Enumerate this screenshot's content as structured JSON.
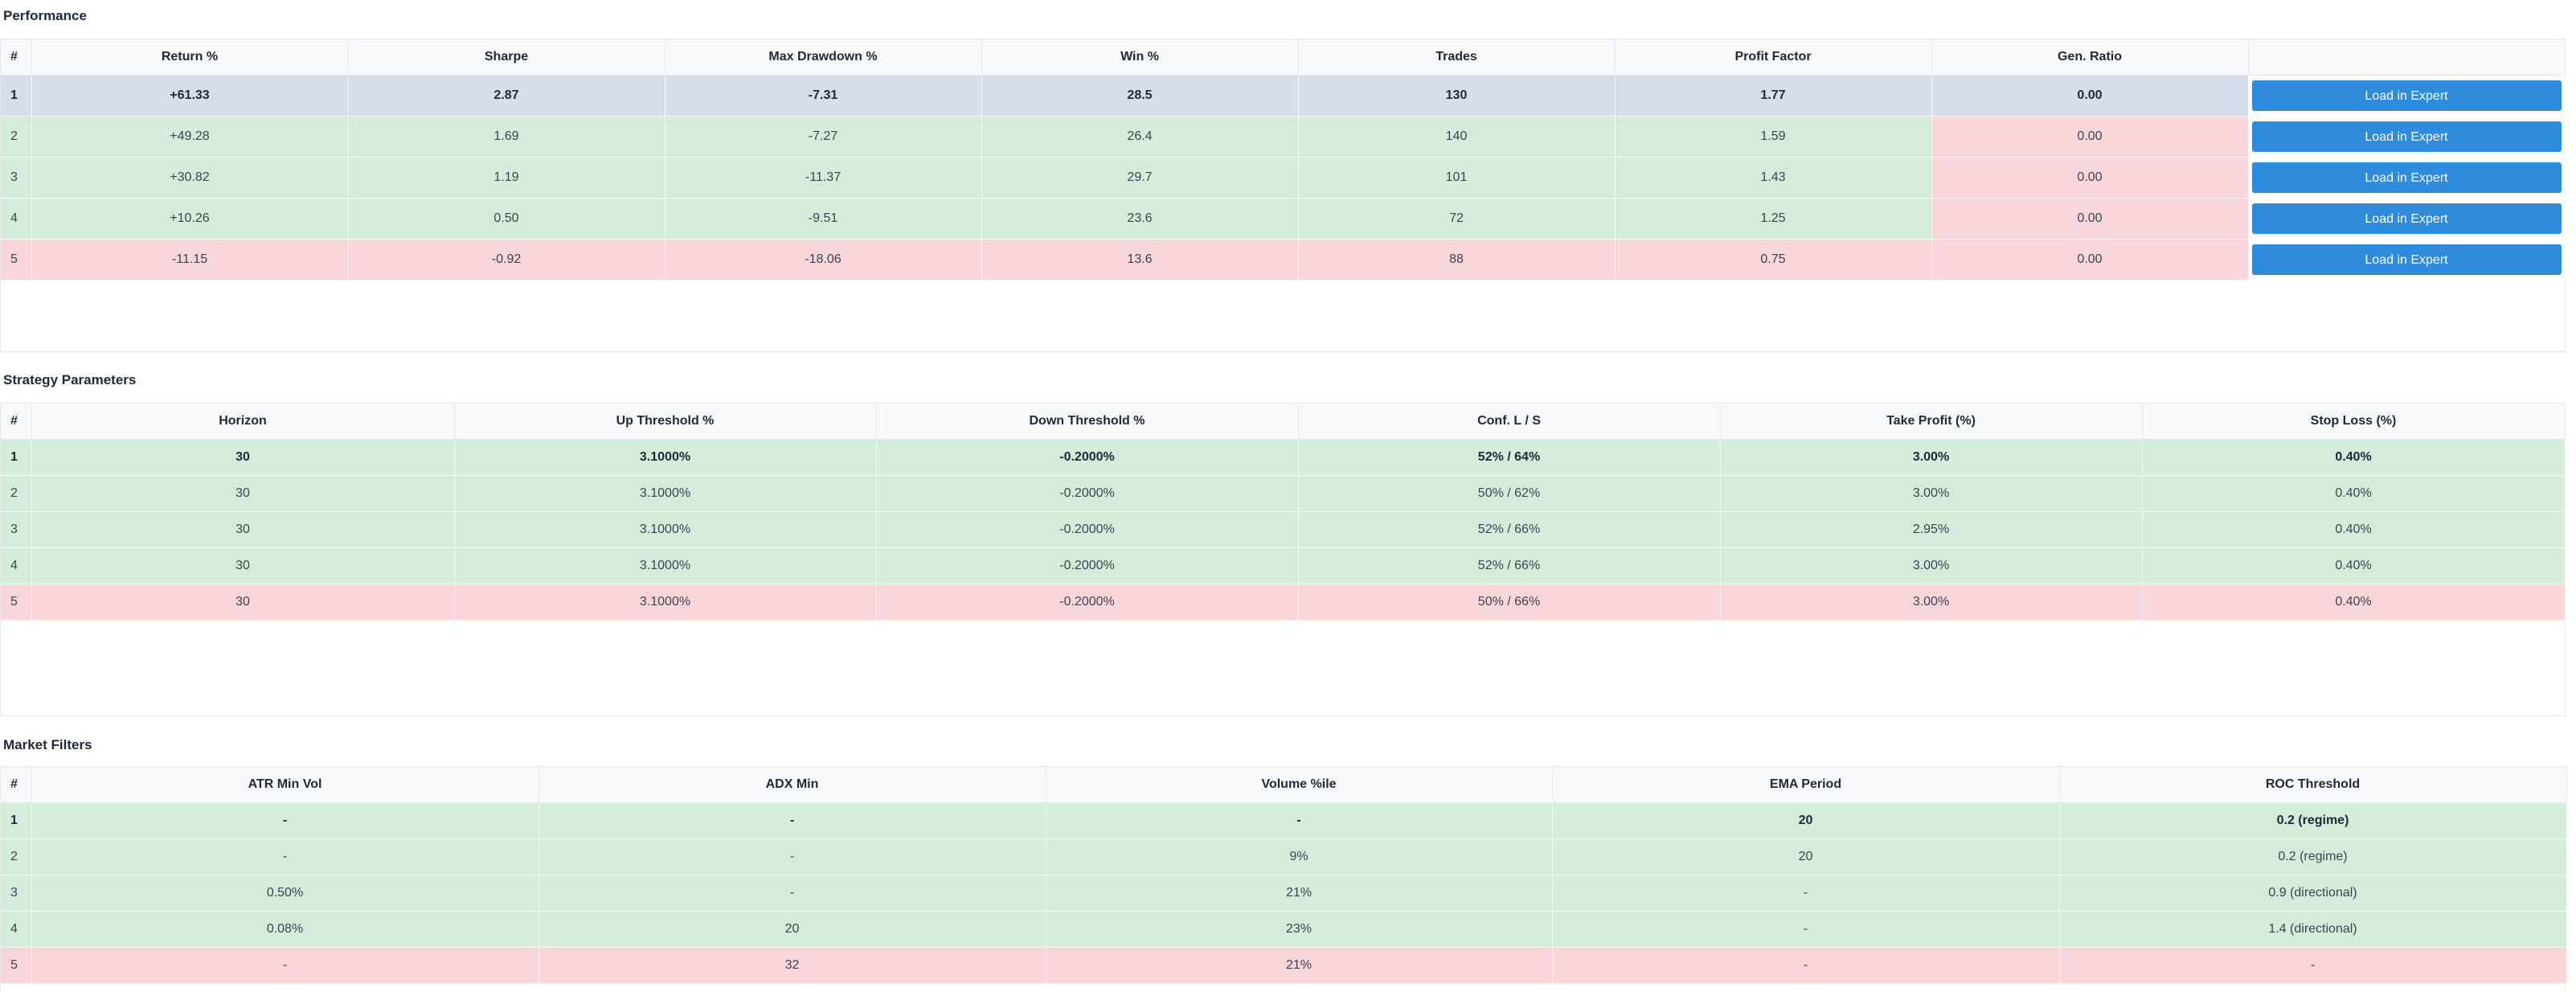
{
  "performance": {
    "title": "Performance",
    "headers": [
      "#",
      "Return %",
      "Sharpe",
      "Max Drawdown %",
      "Win %",
      "Trades",
      "Profit Factor",
      "Gen. Ratio",
      ""
    ],
    "rows": [
      {
        "idx": "1",
        "ret": "+61.33",
        "sharpe": "2.87",
        "mdd": "-7.31",
        "win": "28.5",
        "trades": "130",
        "pf": "1.77",
        "gen": "0.00",
        "btn": "Load in Expert"
      },
      {
        "idx": "2",
        "ret": "+49.28",
        "sharpe": "1.69",
        "mdd": "-7.27",
        "win": "26.4",
        "trades": "140",
        "pf": "1.59",
        "gen": "0.00",
        "btn": "Load in Expert"
      },
      {
        "idx": "3",
        "ret": "+30.82",
        "sharpe": "1.19",
        "mdd": "-11.37",
        "win": "29.7",
        "trades": "101",
        "pf": "1.43",
        "gen": "0.00",
        "btn": "Load in Expert"
      },
      {
        "idx": "4",
        "ret": "+10.26",
        "sharpe": "0.50",
        "mdd": "-9.51",
        "win": "23.6",
        "trades": "72",
        "pf": "1.25",
        "gen": "0.00",
        "btn": "Load in Expert"
      },
      {
        "idx": "5",
        "ret": "-11.15",
        "sharpe": "-0.92",
        "mdd": "-18.06",
        "win": "13.6",
        "trades": "88",
        "pf": "0.75",
        "gen": "0.00",
        "btn": "Load in Expert"
      }
    ]
  },
  "strategy": {
    "title": "Strategy Parameters",
    "headers": [
      "#",
      "Horizon",
      "Up Threshold %",
      "Down Threshold %",
      "Conf. L / S",
      "Take Profit (%)",
      "Stop Loss (%)"
    ],
    "rows": [
      {
        "idx": "1",
        "horizon": "30",
        "up": "3.1000%",
        "down": "-0.2000%",
        "conf": "52% / 64%",
        "tp": "3.00%",
        "sl": "0.40%"
      },
      {
        "idx": "2",
        "horizon": "30",
        "up": "3.1000%",
        "down": "-0.2000%",
        "conf": "50% / 62%",
        "tp": "3.00%",
        "sl": "0.40%"
      },
      {
        "idx": "3",
        "horizon": "30",
        "up": "3.1000%",
        "down": "-0.2000%",
        "conf": "52% / 66%",
        "tp": "2.95%",
        "sl": "0.40%"
      },
      {
        "idx": "4",
        "horizon": "30",
        "up": "3.1000%",
        "down": "-0.2000%",
        "conf": "52% / 66%",
        "tp": "3.00%",
        "sl": "0.40%"
      },
      {
        "idx": "5",
        "horizon": "30",
        "up": "3.1000%",
        "down": "-0.2000%",
        "conf": "50% / 66%",
        "tp": "3.00%",
        "sl": "0.40%"
      }
    ]
  },
  "filters": {
    "title": "Market Filters",
    "headers": [
      "#",
      "ATR Min Vol",
      "ADX Min",
      "Volume %ile",
      "EMA Period",
      "ROC Threshold"
    ],
    "rows": [
      {
        "idx": "1",
        "atr": "-",
        "adx": "-",
        "vol": "-",
        "ema": "20",
        "roc": "0.2 (regime)"
      },
      {
        "idx": "2",
        "atr": "-",
        "adx": "-",
        "vol": "9%",
        "ema": "20",
        "roc": "0.2 (regime)"
      },
      {
        "idx": "3",
        "atr": "0.50%",
        "adx": "-",
        "vol": "21%",
        "ema": "-",
        "roc": "0.9 (directional)"
      },
      {
        "idx": "4",
        "atr": "0.08%",
        "adx": "20",
        "vol": "23%",
        "ema": "-",
        "roc": "1.4 (directional)"
      },
      {
        "idx": "5",
        "atr": "-",
        "adx": "32",
        "vol": "21%",
        "ema": "-",
        "roc": "-"
      }
    ]
  },
  "colors": {
    "top_row": "#d6deeb",
    "good_row": "#d4eddb",
    "bad_row": "#f9d6da",
    "button": "#2f8bdc"
  }
}
